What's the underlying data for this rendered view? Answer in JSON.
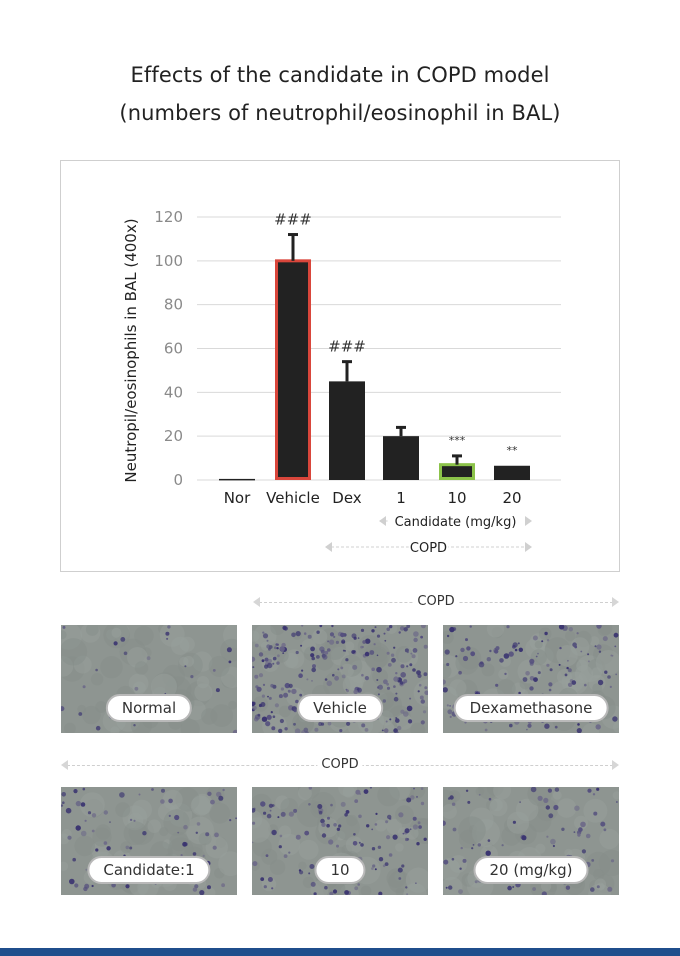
{
  "title": {
    "line1": "Effects of the candidate in COPD model",
    "line2": "(numbers of neutrophil/eosinophil in BAL)"
  },
  "chart_data": {
    "type": "bar",
    "ylabel": "Neutropil/eosinophils in BAL (400x)",
    "ylim": [
      0,
      120
    ],
    "yticks": [
      0,
      20,
      40,
      60,
      80,
      100,
      120
    ],
    "grid": true,
    "categories": [
      "Nor",
      "Vehicle",
      "Dex",
      "1",
      "10",
      "20"
    ],
    "values": [
      0.5,
      100,
      45,
      20,
      7,
      6.5
    ],
    "error_upper": [
      0,
      112,
      54,
      24,
      11,
      0
    ],
    "significance": [
      "",
      "###",
      "###",
      "",
      "***",
      "**"
    ],
    "bar_color": "#222222",
    "highlight": {
      "Vehicle": "#d9463b",
      "10": "#8cc34a"
    },
    "group_labels": [
      {
        "text": "Candidate (mg/kg)",
        "from": 3,
        "to": 5
      },
      {
        "text": "COPD",
        "from": 2,
        "to": 5
      }
    ]
  },
  "micrographs": {
    "row1_bracket": "COPD",
    "row2_bracket": "COPD",
    "row1": [
      {
        "label": "Normal",
        "density": "low"
      },
      {
        "label": "Vehicle",
        "density": "high"
      },
      {
        "label": "Dexamethasone",
        "density": "medium"
      }
    ],
    "row2": [
      {
        "label": "Candidate:1",
        "density": "medium-low"
      },
      {
        "label": "10",
        "density": "medium"
      },
      {
        "label": "20 (mg/kg)",
        "density": "medium-low"
      }
    ]
  }
}
